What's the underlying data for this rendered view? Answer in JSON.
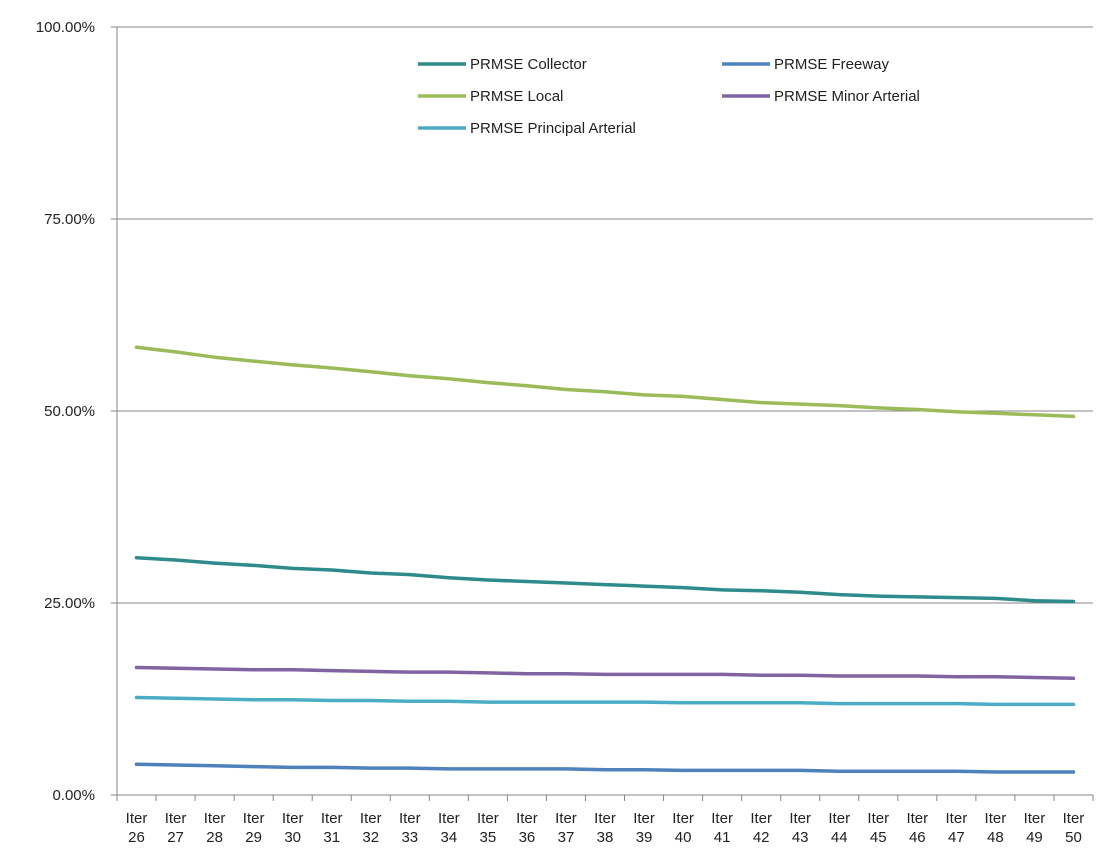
{
  "chart_data": {
    "type": "line",
    "title": "",
    "xlabel": "",
    "ylabel": "",
    "categories": [
      "Iter 26",
      "Iter 27",
      "Iter 28",
      "Iter 29",
      "Iter 30",
      "Iter 31",
      "Iter 32",
      "Iter 33",
      "Iter 34",
      "Iter 35",
      "Iter 36",
      "Iter 37",
      "Iter 38",
      "Iter 39",
      "Iter 40",
      "Iter 41",
      "Iter 42",
      "Iter 43",
      "Iter 44",
      "Iter 45",
      "Iter 46",
      "Iter 47",
      "Iter 48",
      "Iter 49",
      "Iter 50"
    ],
    "category_lines": [
      [
        "Iter",
        "26"
      ],
      [
        "Iter",
        "27"
      ],
      [
        "Iter",
        "28"
      ],
      [
        "Iter",
        "29"
      ],
      [
        "Iter",
        "30"
      ],
      [
        "Iter",
        "31"
      ],
      [
        "Iter",
        "32"
      ],
      [
        "Iter",
        "33"
      ],
      [
        "Iter",
        "34"
      ],
      [
        "Iter",
        "35"
      ],
      [
        "Iter",
        "36"
      ],
      [
        "Iter",
        "37"
      ],
      [
        "Iter",
        "38"
      ],
      [
        "Iter",
        "39"
      ],
      [
        "Iter",
        "40"
      ],
      [
        "Iter",
        "41"
      ],
      [
        "Iter",
        "42"
      ],
      [
        "Iter",
        "43"
      ],
      [
        "Iter",
        "44"
      ],
      [
        "Iter",
        "45"
      ],
      [
        "Iter",
        "46"
      ],
      [
        "Iter",
        "47"
      ],
      [
        "Iter",
        "48"
      ],
      [
        "Iter",
        "49"
      ],
      [
        "Iter",
        "50"
      ]
    ],
    "ylim": [
      0,
      100
    ],
    "yticks": [
      0,
      25,
      50,
      75,
      100
    ],
    "ytick_labels": [
      "0.00%",
      "25.00%",
      "50.00%",
      "75.00%",
      "100.00%"
    ],
    "grid": "horizontal",
    "legend_position": "top-center",
    "series": [
      {
        "name": "PRMSE Collector",
        "color": "#2E8B8B",
        "values": [
          30.9,
          30.6,
          30.2,
          29.9,
          29.5,
          29.3,
          28.9,
          28.7,
          28.3,
          28.0,
          27.8,
          27.6,
          27.4,
          27.2,
          27.0,
          26.7,
          26.6,
          26.4,
          26.1,
          25.9,
          25.8,
          25.7,
          25.6,
          25.3,
          25.2
        ]
      },
      {
        "name": "PRMSE Freeway",
        "color": "#4F81BD",
        "values": [
          4.0,
          3.9,
          3.8,
          3.7,
          3.6,
          3.6,
          3.5,
          3.5,
          3.4,
          3.4,
          3.4,
          3.4,
          3.3,
          3.3,
          3.2,
          3.2,
          3.2,
          3.2,
          3.1,
          3.1,
          3.1,
          3.1,
          3.0,
          3.0,
          3.0
        ]
      },
      {
        "name": "PRMSE Local",
        "color": "#9BBB59",
        "values": [
          58.3,
          57.7,
          57.0,
          56.5,
          56.0,
          55.6,
          55.1,
          54.6,
          54.2,
          53.7,
          53.3,
          52.8,
          52.5,
          52.1,
          51.9,
          51.5,
          51.1,
          50.9,
          50.7,
          50.4,
          50.2,
          49.9,
          49.7,
          49.5,
          49.3
        ]
      },
      {
        "name": "PRMSE Minor Arterial",
        "color": "#8064A2",
        "values": [
          16.6,
          16.5,
          16.4,
          16.3,
          16.3,
          16.2,
          16.1,
          16.0,
          16.0,
          15.9,
          15.8,
          15.8,
          15.7,
          15.7,
          15.7,
          15.7,
          15.6,
          15.6,
          15.5,
          15.5,
          15.5,
          15.4,
          15.4,
          15.3,
          15.2
        ]
      },
      {
        "name": "PRMSE Principal Arterial",
        "color": "#4BACC6",
        "values": [
          12.7,
          12.6,
          12.5,
          12.4,
          12.4,
          12.3,
          12.3,
          12.2,
          12.2,
          12.1,
          12.1,
          12.1,
          12.1,
          12.1,
          12.0,
          12.0,
          12.0,
          12.0,
          11.9,
          11.9,
          11.9,
          11.9,
          11.8,
          11.8,
          11.8
        ]
      }
    ]
  }
}
